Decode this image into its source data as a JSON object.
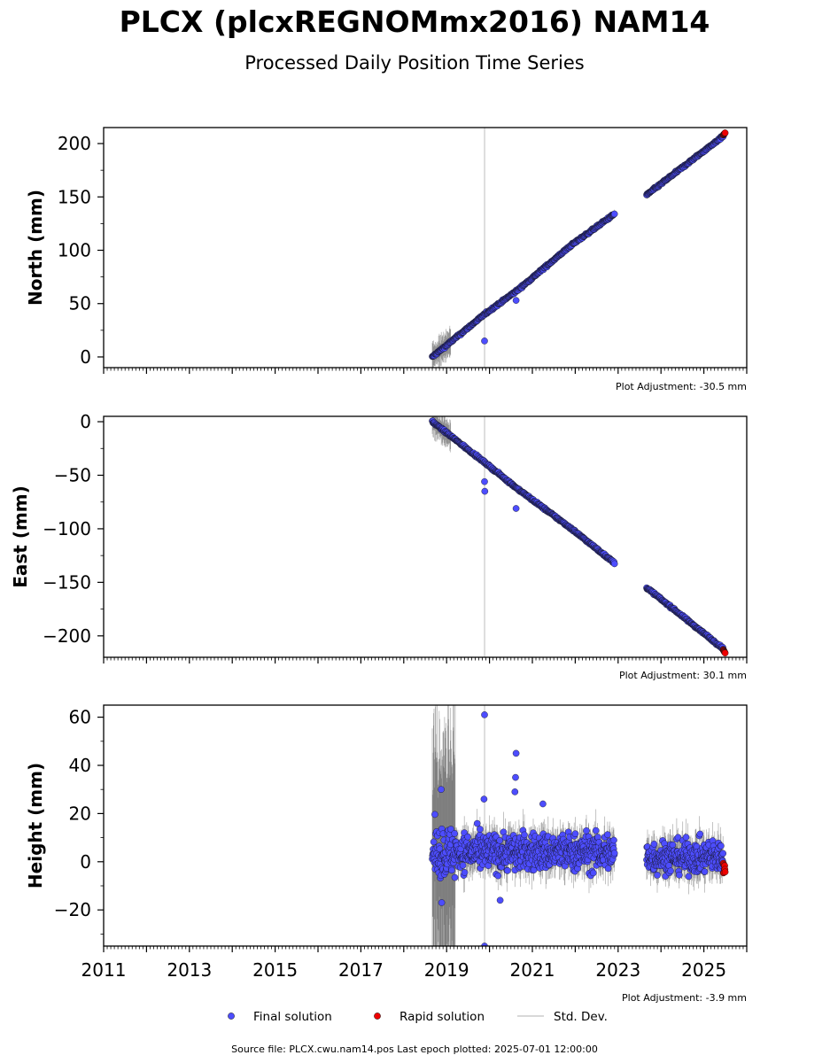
{
  "title": "PLCX (plcxREGNOMmx2016) NAM14",
  "subtitle": "Processed Daily Position Time Series",
  "footer": "Source file: PLCX.cwu.nam14.pos  Last epoch plotted: 2025-07-01 12:00:00",
  "colors": {
    "final": "#4d4dff",
    "rapid": "#ee0000",
    "stddev": "#555555",
    "stddev_legend": "#cccccc",
    "axis": "#000000"
  },
  "legend": {
    "final": "Final solution",
    "rapid": "Rapid solution",
    "stddev": "Std. Dev."
  },
  "chart_data": [
    {
      "type": "scatter",
      "ylabel": "North (mm)",
      "ylim": [
        -10,
        215
      ],
      "xlim": [
        "2011-01-01",
        "2026-01-01"
      ],
      "yticks": [
        0,
        50,
        100,
        150,
        200
      ],
      "xticks": [
        "2011",
        "2013",
        "2015",
        "2017",
        "2019",
        "2021",
        "2023",
        "2025"
      ],
      "adjustment": "Plot Adjustment: -30.5 mm",
      "series": [
        {
          "name": "Final solution",
          "segments": [
            {
              "x": [
                "2018-09-01",
                "2019-11-20",
                "2020-09-01",
                "2021-12-01",
                "2022-12-01"
              ],
              "y": [
                0,
                40,
                63,
                105,
                134
              ]
            },
            {
              "x": [
                "2023-09-01",
                "2025-06-15"
              ],
              "y": [
                152,
                207
              ]
            }
          ],
          "outliers": [
            {
              "x": "2019-11-20",
              "y": 15
            },
            {
              "x": "2020-08-15",
              "y": 53
            }
          ]
        },
        {
          "name": "Rapid solution",
          "x": [
            "2025-06-15",
            "2025-07-01"
          ],
          "y": [
            208,
            210
          ]
        }
      ]
    },
    {
      "type": "scatter",
      "ylabel": "East (mm)",
      "ylim": [
        -220,
        5
      ],
      "xlim": [
        "2011-01-01",
        "2026-01-01"
      ],
      "yticks": [
        0,
        -50,
        -100,
        -150,
        -200
      ],
      "xticks": [
        "2011",
        "2013",
        "2015",
        "2017",
        "2019",
        "2021",
        "2023",
        "2025"
      ],
      "adjustment": "Plot Adjustment: 30.1 mm",
      "series": [
        {
          "name": "Final solution",
          "segments": [
            {
              "x": [
                "2018-09-01",
                "2019-11-20",
                "2020-09-01",
                "2021-12-01",
                "2022-12-01"
              ],
              "y": [
                0,
                -38,
                -63,
                -100,
                -132
              ]
            },
            {
              "x": [
                "2023-09-01",
                "2025-06-15"
              ],
              "y": [
                -155,
                -212
              ]
            }
          ],
          "outliers": [
            {
              "x": "2019-11-20",
              "y": -56
            },
            {
              "x": "2019-11-22",
              "y": -65
            },
            {
              "x": "2020-08-15",
              "y": -81
            }
          ]
        },
        {
          "name": "Rapid solution",
          "x": [
            "2025-06-15",
            "2025-07-01"
          ],
          "y": [
            -213,
            -216
          ]
        }
      ]
    },
    {
      "type": "scatter",
      "ylabel": "Height (mm)",
      "ylim": [
        -35,
        65
      ],
      "xlim": [
        "2011-01-01",
        "2026-01-01"
      ],
      "yticks": [
        60,
        40,
        20,
        0,
        -20
      ],
      "xticks": [
        "2011",
        "2013",
        "2015",
        "2017",
        "2019",
        "2021",
        "2023",
        "2025"
      ],
      "adjustment": "Plot Adjustment: -3.9 mm",
      "series": [
        {
          "name": "Final solution",
          "segments": [
            {
              "x": [
                "2018-09-01",
                "2022-12-01"
              ],
              "y_mean": 4,
              "y_spread": 7
            },
            {
              "x": [
                "2023-09-01",
                "2025-06-15"
              ],
              "y_mean": 2,
              "y_spread": 6
            }
          ],
          "outliers": [
            {
              "x": "2018-11-15",
              "y": 30
            },
            {
              "x": "2018-11-20",
              "y": -17
            },
            {
              "x": "2019-11-20",
              "y": 61
            },
            {
              "x": "2019-11-15",
              "y": 26
            },
            {
              "x": "2020-08-15",
              "y": 45
            },
            {
              "x": "2020-08-10",
              "y": 35
            },
            {
              "x": "2020-08-05",
              "y": 29
            },
            {
              "x": "2021-04-01",
              "y": 24
            },
            {
              "x": "2020-04-01",
              "y": -16
            },
            {
              "x": "2019-11-20",
              "y": -35
            }
          ]
        },
        {
          "name": "Rapid solution",
          "x": [
            "2025-06-15",
            "2025-07-01"
          ],
          "y_range": [
            -6,
            2
          ]
        }
      ]
    }
  ]
}
